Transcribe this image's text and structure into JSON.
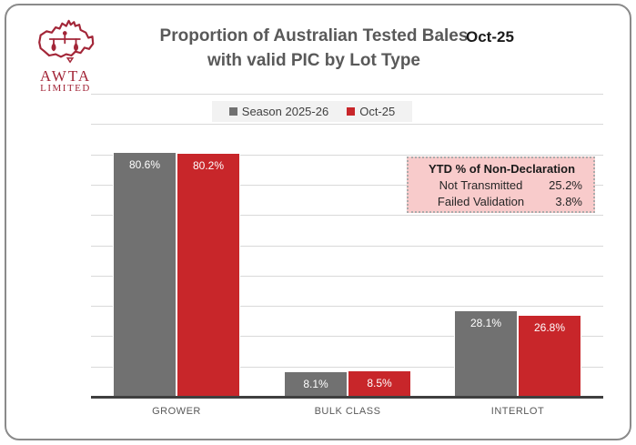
{
  "window": {
    "background": "#ffffff",
    "border_color": "#8a8a8a"
  },
  "logo": {
    "org": "AWTA",
    "suffix": "LIMITED",
    "color": "#A32638"
  },
  "header": {
    "title_line1": "Proportion of Australian Tested Bales",
    "title_line2": "with valid PIC by Lot Type",
    "date_label": "Oct-25"
  },
  "legend": {
    "background": "#F2F2F2",
    "items": [
      {
        "label": "Season 2025-26",
        "color": "#717171"
      },
      {
        "label": "Oct-25",
        "color": "#C8262A"
      }
    ]
  },
  "ytd_box": {
    "title": "YTD % of Non-Declaration",
    "rows": [
      {
        "label": "Not Transmitted",
        "value": "25.2%"
      },
      {
        "label": "Failed Validation",
        "value": "3.8%"
      }
    ],
    "background": "#F8CBCB"
  },
  "chart_data": {
    "type": "bar",
    "title": "Proportion of Australian Tested Bales with valid PIC by Lot Type",
    "categories": [
      "GROWER",
      "BULK CLASS",
      "INTERLOT"
    ],
    "series": [
      {
        "name": "Season 2025-26",
        "color": "#717171",
        "values": [
          80.6,
          8.1,
          28.1
        ]
      },
      {
        "name": "Oct-25",
        "color": "#C8262A",
        "values": [
          80.2,
          8.5,
          26.8
        ]
      }
    ],
    "value_label_format": "percent_1dp",
    "xlabel": "",
    "ylabel": "",
    "ylim": [
      0,
      100
    ],
    "gridline_step": 10,
    "grid": true,
    "gridline_color": "#D9D9D9",
    "axis_color": "#3f3f3f",
    "legend_position": "top"
  }
}
